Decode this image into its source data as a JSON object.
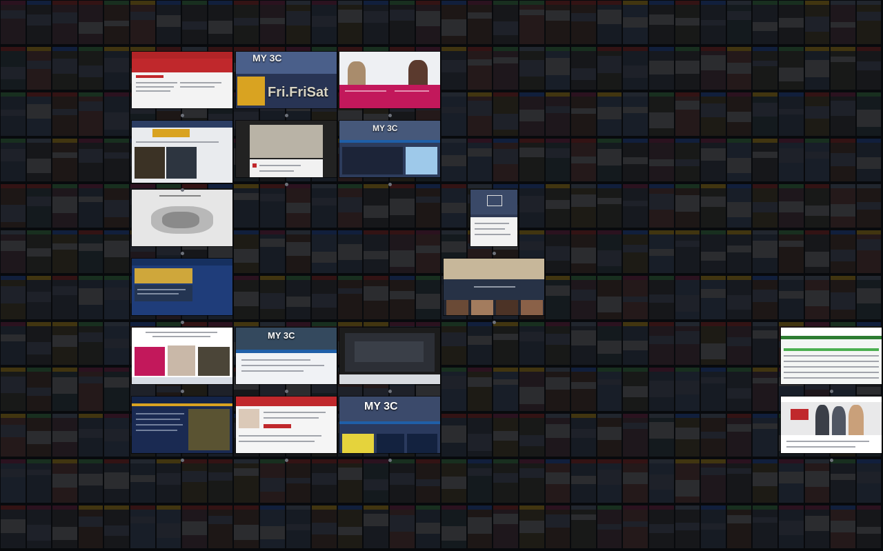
{
  "colors": {
    "background": "#0d0e12",
    "dim_overlay": "rgba(6,7,10,0.55)",
    "accent_red": "#c0282c",
    "accent_magenta": "#c2185b",
    "accent_navy": "#1f3d7a",
    "accent_gold": "#d9a321"
  },
  "tiles": [
    {
      "theme": "red-hero"
    },
    {
      "theme": "event-poster",
      "big_text": "Fri.FriSat",
      "logo_text": "MY 3C"
    },
    {
      "theme": "magenta-people"
    },
    {
      "theme": "grid-gallery"
    },
    {
      "theme": "photo-people"
    },
    {
      "theme": "event-dark",
      "logo_text": "MY 3C"
    },
    {
      "theme": "sketch-map"
    },
    {
      "theme": "navy-blue"
    },
    {
      "theme": "phone-card"
    },
    {
      "theme": "portraits"
    },
    {
      "theme": "magenta-left"
    },
    {
      "theme": "event-white",
      "logo_text": "MY 3C"
    },
    {
      "theme": "video-dark"
    },
    {
      "theme": "navy-gold"
    },
    {
      "theme": "red-form"
    },
    {
      "theme": "event-yellow",
      "logo_text": "MY 3C"
    },
    {
      "theme": "green-table"
    },
    {
      "theme": "business-people"
    }
  ]
}
